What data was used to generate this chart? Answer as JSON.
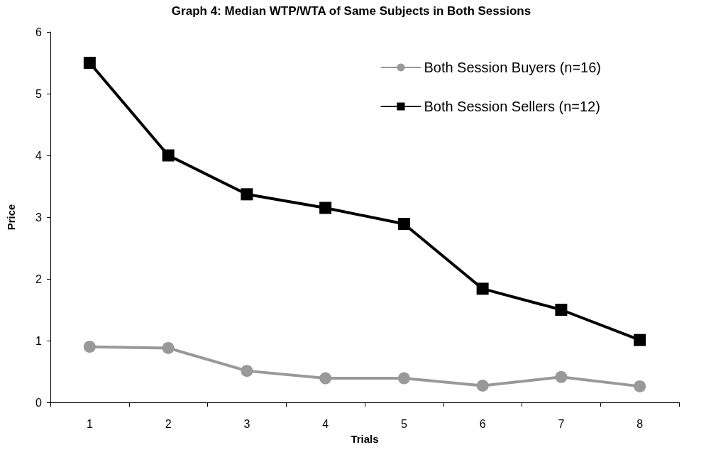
{
  "chart_data": {
    "type": "line",
    "title": "Graph 4: Median WTP/WTA of Same Subjects in Both Sessions",
    "xlabel": "Trials",
    "ylabel": "Price",
    "categories": [
      "1",
      "2",
      "3",
      "4",
      "5",
      "6",
      "7",
      "8"
    ],
    "series": [
      {
        "name": "Both Session Buyers (n=16)",
        "color": "#999999",
        "marker": "circle",
        "values": [
          0.9,
          0.88,
          0.51,
          0.39,
          0.39,
          0.27,
          0.41,
          0.26
        ]
      },
      {
        "name": "Both Session Sellers (n=12)",
        "color": "#000000",
        "marker": "square",
        "values": [
          5.5,
          4.0,
          3.37,
          3.15,
          2.89,
          1.84,
          1.5,
          1.01
        ]
      }
    ],
    "ylim": [
      0,
      6
    ],
    "yticks": [
      0,
      1,
      2,
      3,
      4,
      5,
      6
    ],
    "grid": false,
    "legend": "top right",
    "line_style": "solid"
  }
}
